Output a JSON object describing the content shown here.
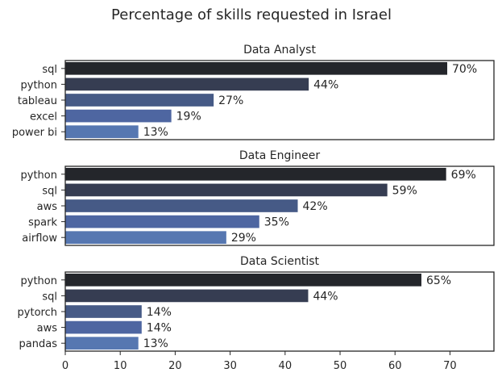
{
  "chart_data": {
    "type": "bar",
    "orientation": "horizontal",
    "title": "Percentage of skills requested in Israel",
    "xlim": [
      0,
      78
    ],
    "xticks": [
      0,
      10,
      20,
      30,
      40,
      50,
      60,
      70
    ],
    "value_suffix": "%",
    "panels": [
      {
        "subtitle": "Data Analyst",
        "categories": [
          "sql",
          "python",
          "tableau",
          "excel",
          "power bi"
        ],
        "values": [
          70,
          44,
          27,
          19,
          13
        ],
        "value_labels": [
          "70%",
          "44%",
          "27%",
          "19%",
          "13%"
        ],
        "bar_values": [
          69.5,
          44.3,
          27.0,
          19.3,
          13.3
        ]
      },
      {
        "subtitle": "Data Engineer",
        "categories": [
          "python",
          "sql",
          "aws",
          "spark",
          "airflow"
        ],
        "values": [
          69,
          59,
          42,
          35,
          29
        ],
        "value_labels": [
          "69%",
          "59%",
          "42%",
          "35%",
          "29%"
        ],
        "bar_values": [
          69.3,
          58.6,
          42.3,
          35.3,
          29.3
        ]
      },
      {
        "subtitle": "Data Scientist",
        "categories": [
          "python",
          "sql",
          "pytorch",
          "aws",
          "pandas"
        ],
        "values": [
          65,
          44,
          14,
          14,
          13
        ],
        "value_labels": [
          "65%",
          "44%",
          "14%",
          "14%",
          "13%"
        ],
        "bar_values": [
          64.8,
          44.2,
          13.9,
          13.9,
          13.3
        ]
      }
    ],
    "bar_colors": [
      "#24262b",
      "#363d52",
      "#465a86",
      "#4e66a1",
      "#5677b1"
    ]
  }
}
